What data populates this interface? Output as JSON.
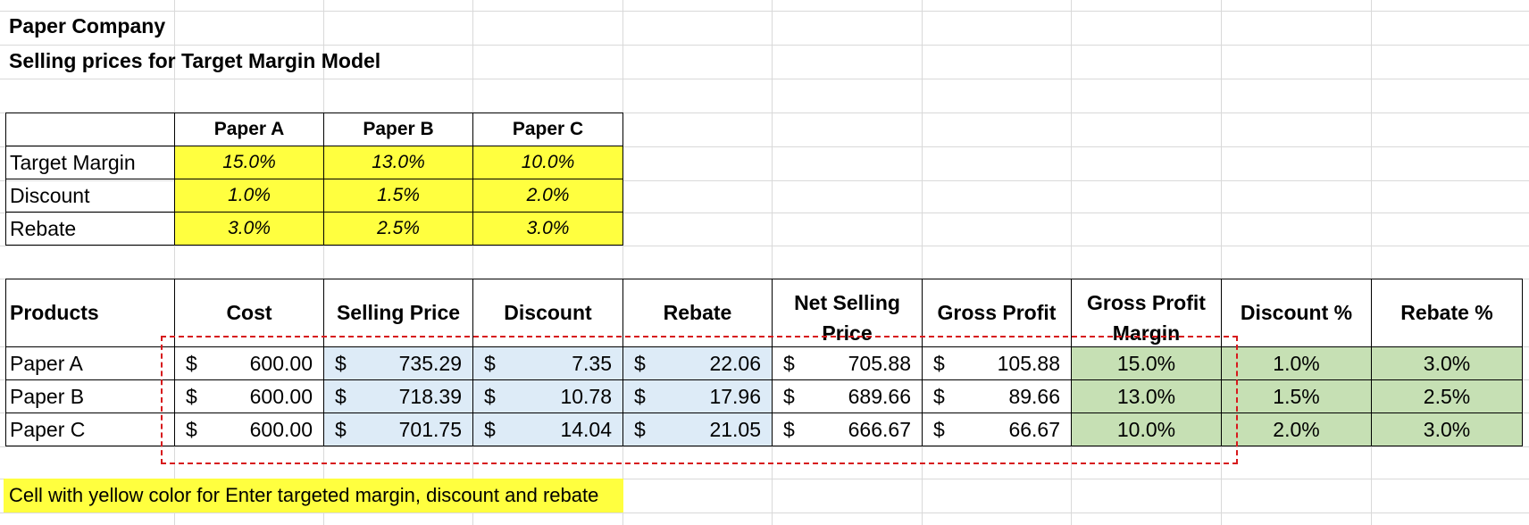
{
  "titles": {
    "company": "Paper Company",
    "model": "Selling prices for Target Margin Model"
  },
  "inputs_table": {
    "headers": [
      "",
      "Paper A",
      "Paper B",
      "Paper C"
    ],
    "rows": [
      {
        "label": "Target Margin",
        "values": [
          "15.0%",
          "13.0%",
          "10.0%"
        ]
      },
      {
        "label": "Discount",
        "values": [
          "1.0%",
          "1.5%",
          "2.0%"
        ]
      },
      {
        "label": "Rebate",
        "values": [
          "3.0%",
          "2.5%",
          "3.0%"
        ]
      }
    ]
  },
  "products_table": {
    "headers": [
      "Products",
      "Cost",
      "Selling Price",
      "Discount",
      "Rebate",
      "Net Selling Price",
      "Gross Profit",
      "Gross Profit Margin",
      "Discount %",
      "Rebate %"
    ],
    "currency_symbol": "$",
    "rows": [
      {
        "product": "Paper A",
        "cost": "600.00",
        "selling_price": "735.29",
        "discount": "7.35",
        "rebate": "22.06",
        "net_selling_price": "705.88",
        "gross_profit": "105.88",
        "gross_profit_margin": "15.0%",
        "discount_pct": "1.0%",
        "rebate_pct": "3.0%"
      },
      {
        "product": "Paper B",
        "cost": "600.00",
        "selling_price": "718.39",
        "discount": "10.78",
        "rebate": "17.96",
        "net_selling_price": "689.66",
        "gross_profit": "89.66",
        "gross_profit_margin": "13.0%",
        "discount_pct": "1.5%",
        "rebate_pct": "2.5%"
      },
      {
        "product": "Paper C",
        "cost": "600.00",
        "selling_price": "701.75",
        "discount": "14.04",
        "rebate": "21.05",
        "net_selling_price": "666.67",
        "gross_profit": "66.67",
        "gross_profit_margin": "10.0%",
        "discount_pct": "2.0%",
        "rebate_pct": "3.0%"
      }
    ]
  },
  "note": "Cell with yellow color for Enter targeted margin, discount and rebate",
  "colors": {
    "input_yellow": "#ffff3f",
    "calc_blue": "#ddebf7",
    "result_green": "#c6e0b4",
    "highlight_dash_red": "#d7191c"
  }
}
